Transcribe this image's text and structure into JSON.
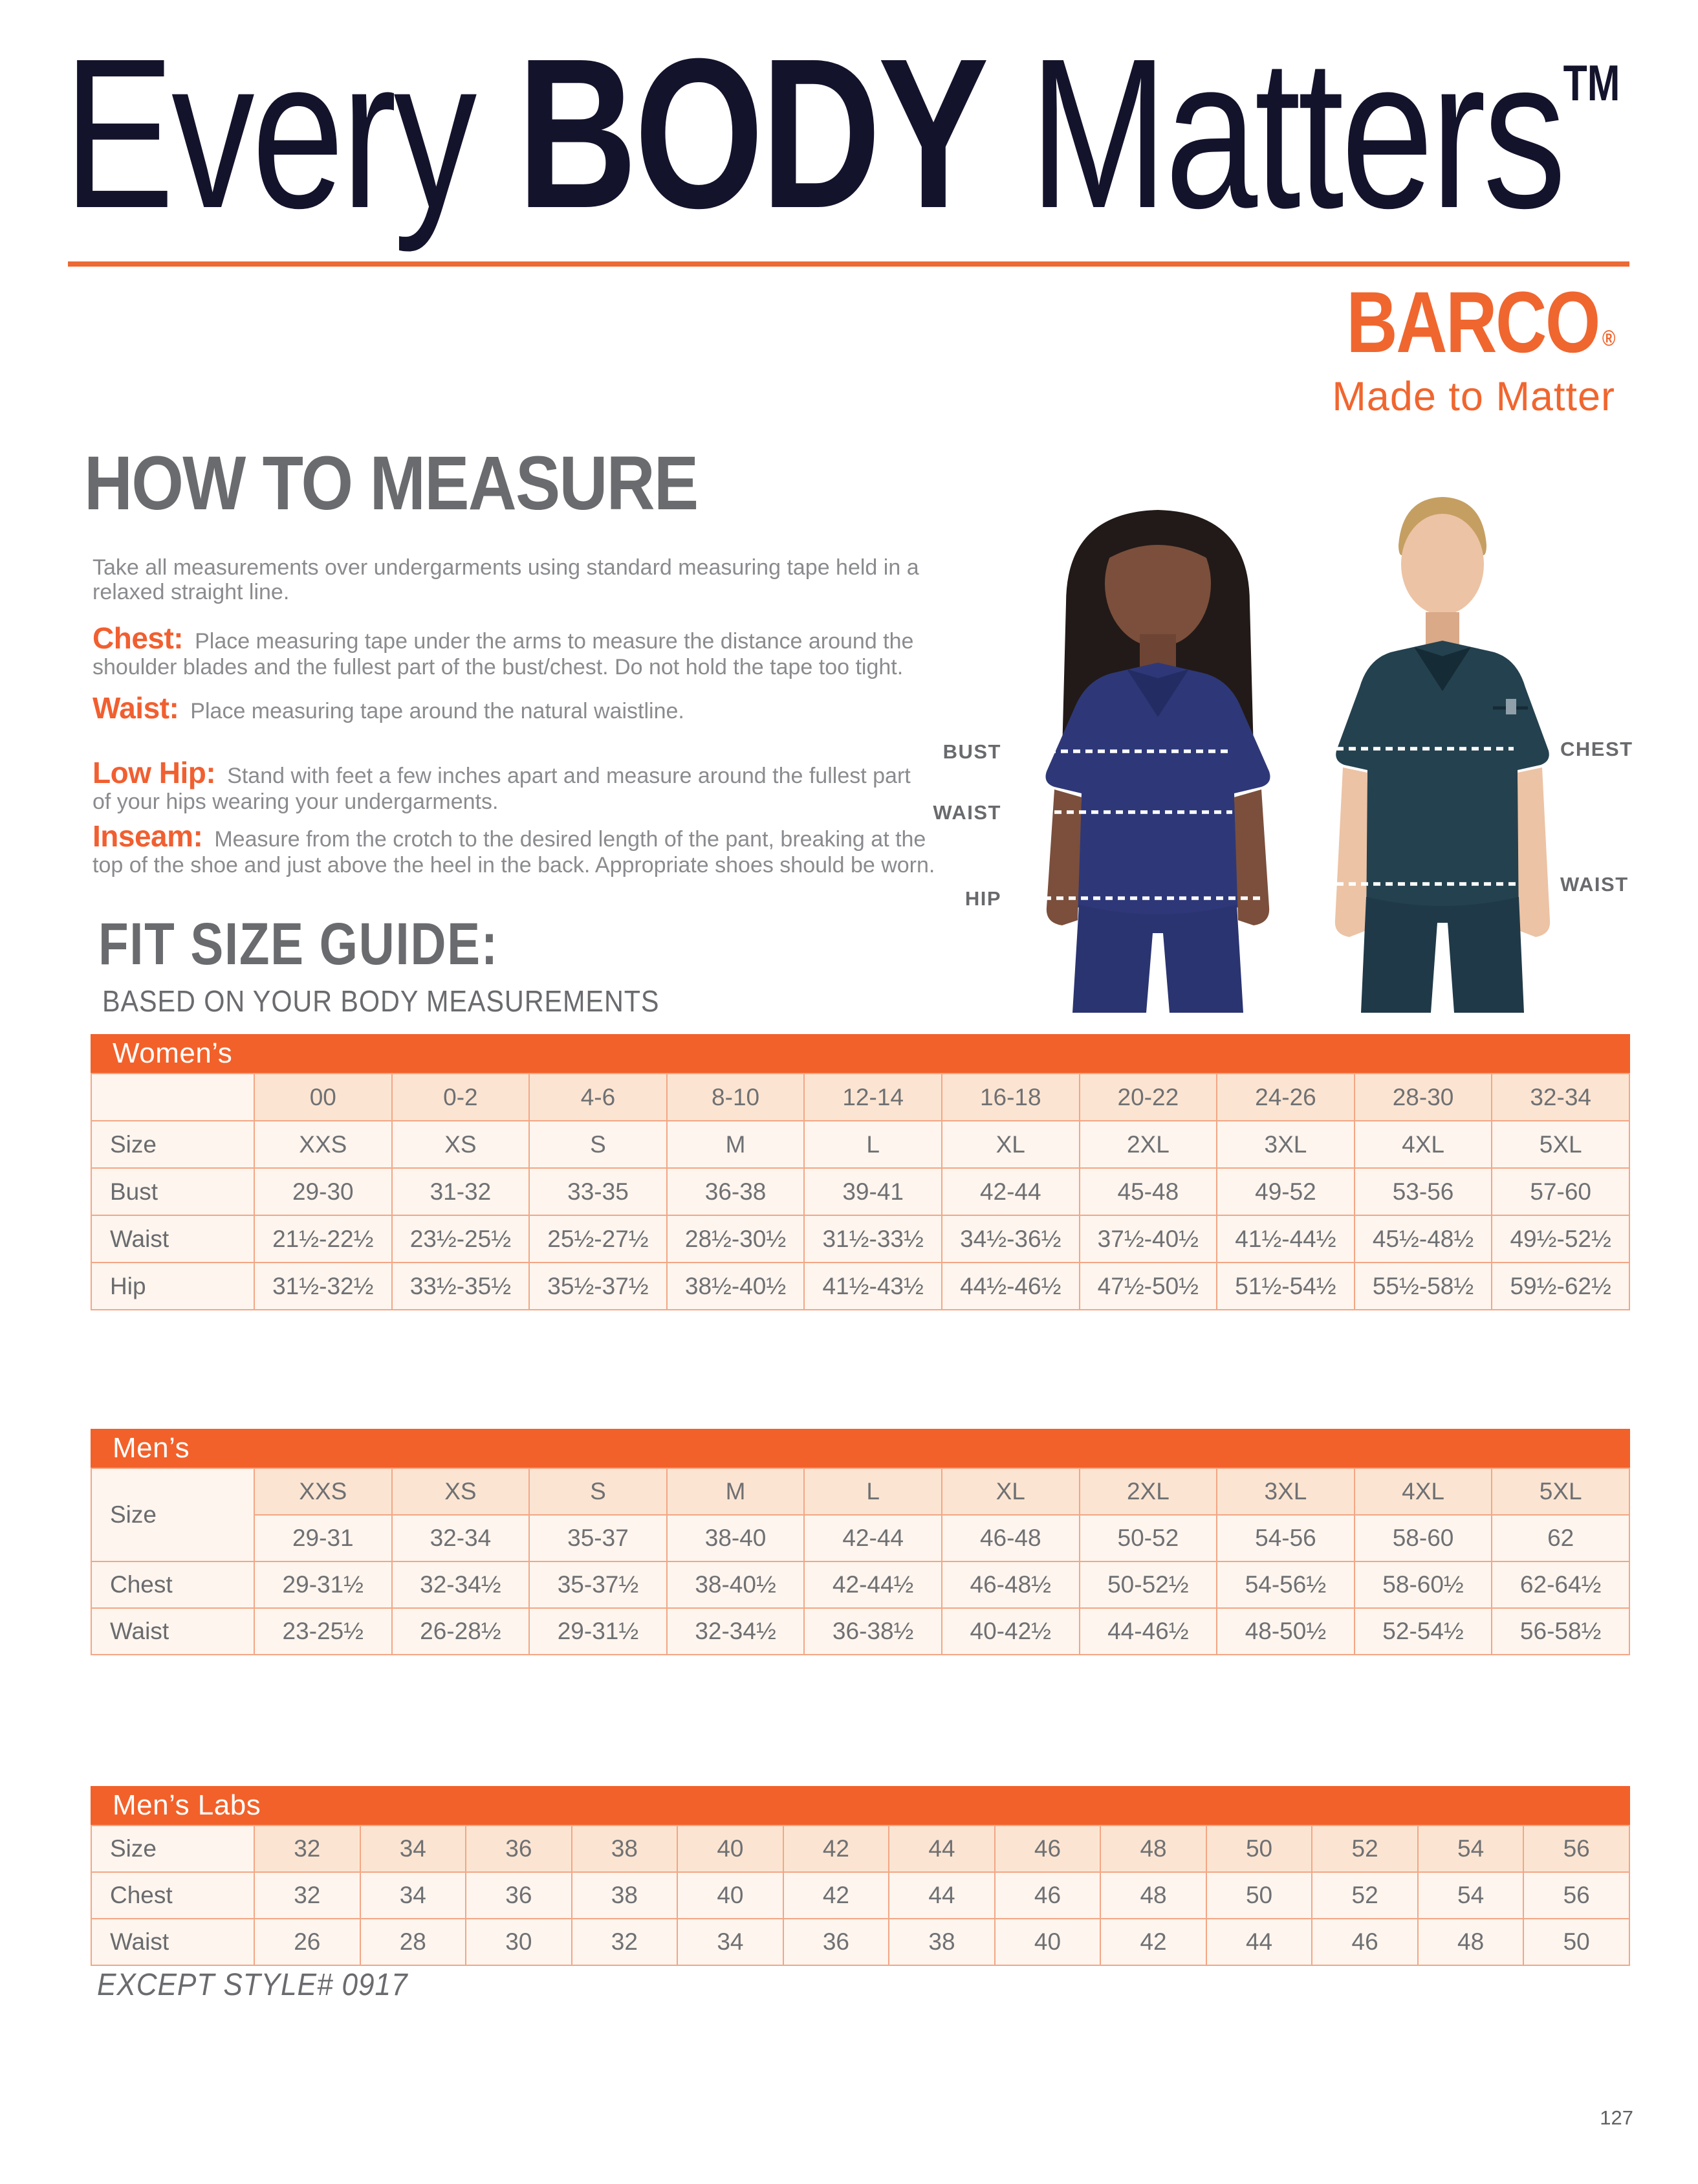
{
  "header": {
    "title_pre": "Every",
    "title_emph": "BODY",
    "title_post": "Matters",
    "title_tm": "TM",
    "brand": "BARCO",
    "brand_reg": "®",
    "brand_tagline": "Made to Matter"
  },
  "how_to_measure": {
    "heading": "HOW TO MEASURE",
    "intro": "Take all measurements over undergarments using standard measuring tape held in a\nrelaxed straight line.",
    "items": [
      {
        "label": "Chest:",
        "text": "Place measuring tape under the arms to measure the distance around the\nshoulder blades and the fullest part of the bust/chest. Do not hold the tape too tight."
      },
      {
        "label": "Waist:",
        "text": "Place measuring tape around the natural waistline."
      },
      {
        "label": "Low Hip:",
        "text": "Stand with feet a few inches apart and measure around the fullest part\nof your hips wearing your undergarments."
      },
      {
        "label": "Inseam:",
        "text": "Measure from the crotch to the desired length of the pant, breaking at the\ntop of the shoe and just above the heel in the back. Appropriate shoes should be worn."
      }
    ]
  },
  "figure": {
    "bust": "BUST",
    "waist_women": "WAIST",
    "hip": "HIP",
    "chest": "CHEST",
    "waist_men": "WAIST"
  },
  "fit_guide": {
    "heading": "FIT SIZE GUIDE:",
    "subheading": "BASED ON YOUR BODY MEASUREMENTS"
  },
  "tables": {
    "womens": {
      "title": "Women’s",
      "rows": [
        {
          "label": "",
          "shaded": true,
          "values": [
            "00",
            "0-2",
            "4-6",
            "8-10",
            "12-14",
            "16-18",
            "20-22",
            "24-26",
            "28-30",
            "32-34"
          ]
        },
        {
          "label": "Size",
          "values": [
            "XXS",
            "XS",
            "S",
            "M",
            "L",
            "XL",
            "2XL",
            "3XL",
            "4XL",
            "5XL"
          ]
        },
        {
          "label": "Bust",
          "values": [
            "29-30",
            "31-32",
            "33-35",
            "36-38",
            "39-41",
            "42-44",
            "45-48",
            "49-52",
            "53-56",
            "57-60"
          ]
        },
        {
          "label": "Waist",
          "values": [
            "21½-22½",
            "23½-25½",
            "25½-27½",
            "28½-30½",
            "31½-33½",
            "34½-36½",
            "37½-40½",
            "41½-44½",
            "45½-48½",
            "49½-52½"
          ]
        },
        {
          "label": "Hip",
          "values": [
            "31½-32½",
            "33½-35½",
            "35½-37½",
            "38½-40½",
            "41½-43½",
            "44½-46½",
            "47½-50½",
            "51½-54½",
            "55½-58½",
            "59½-62½"
          ]
        }
      ]
    },
    "mens": {
      "title": "Men’s",
      "rows": [
        {
          "label": "Size",
          "labelRowspan": 2,
          "shaded": true,
          "values": [
            "XXS",
            "XS",
            "S",
            "M",
            "L",
            "XL",
            "2XL",
            "3XL",
            "4XL",
            "5XL"
          ]
        },
        {
          "label": null,
          "values": [
            "29-31",
            "32-34",
            "35-37",
            "38-40",
            "42-44",
            "46-48",
            "50-52",
            "54-56",
            "58-60",
            "62"
          ]
        },
        {
          "label": "Chest",
          "values": [
            "29-31½",
            "32-34½",
            "35-37½",
            "38-40½",
            "42-44½",
            "46-48½",
            "50-52½",
            "54-56½",
            "58-60½",
            "62-64½"
          ]
        },
        {
          "label": "Waist",
          "values": [
            "23-25½",
            "26-28½",
            "29-31½",
            "32-34½",
            "36-38½",
            "40-42½",
            "44-46½",
            "48-50½",
            "52-54½",
            "56-58½"
          ]
        }
      ]
    },
    "mensLabs": {
      "title": "Men’s Labs",
      "rows": [
        {
          "label": "Size",
          "shaded": true,
          "values": [
            "32",
            "34",
            "36",
            "38",
            "40",
            "42",
            "44",
            "46",
            "48",
            "50",
            "52",
            "54",
            "56"
          ]
        },
        {
          "label": "Chest",
          "values": [
            "32",
            "34",
            "36",
            "38",
            "40",
            "42",
            "44",
            "46",
            "48",
            "50",
            "52",
            "54",
            "56"
          ]
        },
        {
          "label": "Waist",
          "values": [
            "26",
            "28",
            "30",
            "32",
            "34",
            "36",
            "38",
            "40",
            "42",
            "44",
            "46",
            "48",
            "50"
          ]
        }
      ]
    }
  },
  "footnote": "EXCEPT STYLE# 0917",
  "page_number": "127",
  "colors": {
    "accent_orange": "#F2612A",
    "rule_orange": "#EC6A34",
    "brand_orange": "#F0662F",
    "lead_orange": "#F15F30",
    "title_navy": "#14132C",
    "heading_gray": "#6A6B6E",
    "body_gray": "#8A8B8E",
    "table_peach": "#FBE5D2",
    "table_cream": "#FDF5EE",
    "table_border": "#F3A685"
  }
}
